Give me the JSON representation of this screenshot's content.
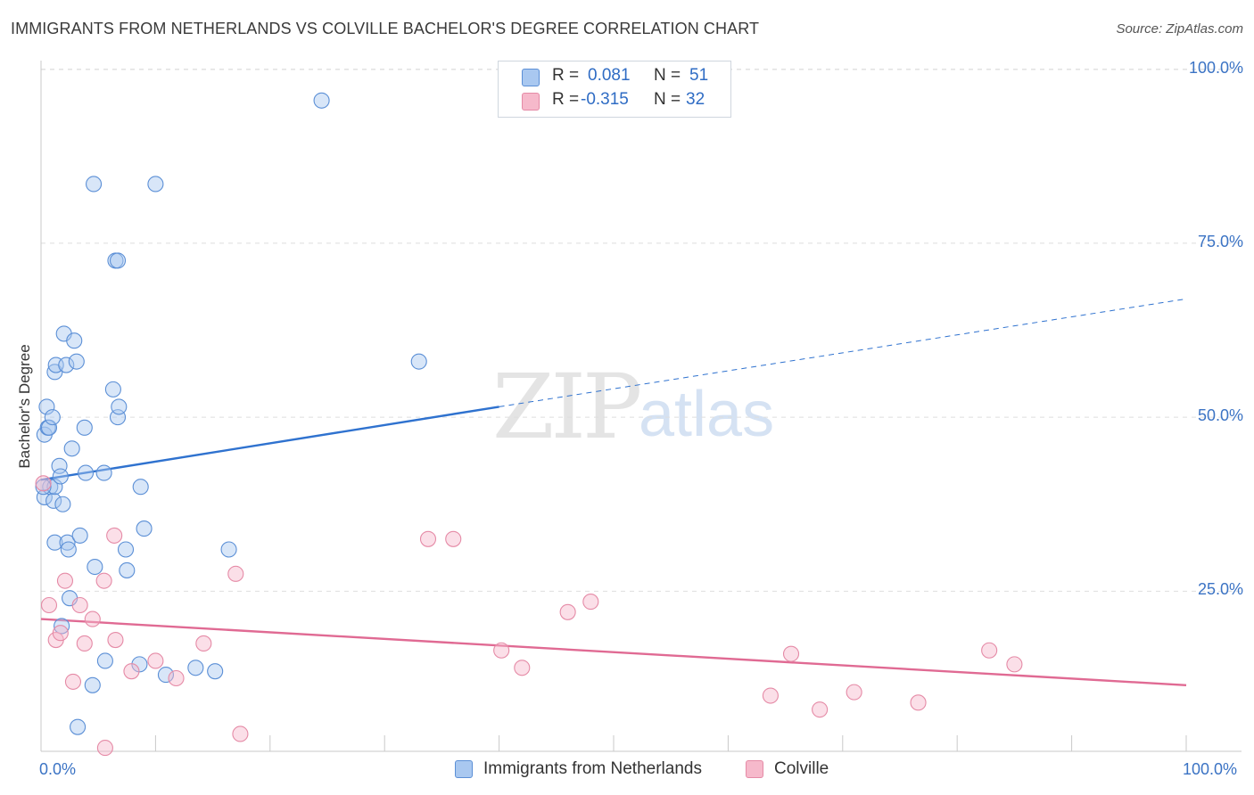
{
  "header": {
    "title": "IMMIGRANTS FROM NETHERLANDS VS COLVILLE BACHELOR'S DEGREE CORRELATION CHART",
    "source": "Source: ZipAtlas.com"
  },
  "watermark": {
    "zip": "ZIP",
    "atlas": "atlas"
  },
  "stats": {
    "rows": [
      {
        "r_label": "R =",
        "r_value": "0.081",
        "n_label": "N =",
        "n_value": "51"
      },
      {
        "r_label": "R =",
        "r_value": "-0.315",
        "n_label": "N =",
        "n_value": "32"
      }
    ]
  },
  "colors": {
    "blue_fill": "#a9c8f0",
    "blue_stroke": "#5b8fd6",
    "blue_line": "#2f72cf",
    "pink_fill": "#f6b9cb",
    "pink_stroke": "#e58aa6",
    "pink_line": "#e06a93",
    "tick_text": "#3b73c4",
    "grid": "#dedede"
  },
  "chart_data": {
    "type": "scatter",
    "title": "IMMIGRANTS FROM NETHERLANDS VS COLVILLE BACHELOR'S DEGREE CORRELATION CHART",
    "xlabel": "",
    "ylabel": "Bachelor's Degree",
    "xlim": [
      0,
      100
    ],
    "ylim": [
      2,
      102
    ],
    "x_tick_labels": [
      "0.0%",
      "100.0%"
    ],
    "y_ticks": [
      25,
      50,
      75,
      100
    ],
    "y_tick_labels": [
      "25.0%",
      "50.0%",
      "75.0%",
      "100.0%"
    ],
    "grid": true,
    "legend_placement": "bottom-center",
    "series": [
      {
        "name": "Immigrants from Netherlands",
        "color": "#a9c8f0",
        "points": [
          [
            0.3,
            47.5
          ],
          [
            0.3,
            38.5
          ],
          [
            0.5,
            51.5
          ],
          [
            0.6,
            48.5
          ],
          [
            0.7,
            48.5
          ],
          [
            0.8,
            40
          ],
          [
            1.0,
            50
          ],
          [
            1.1,
            38
          ],
          [
            1.2,
            40
          ],
          [
            1.2,
            32
          ],
          [
            1.2,
            56.5
          ],
          [
            1.3,
            57.5
          ],
          [
            1.6,
            43
          ],
          [
            1.7,
            41.5
          ],
          [
            1.8,
            20
          ],
          [
            1.9,
            37.5
          ],
          [
            2.0,
            62
          ],
          [
            2.2,
            57.5
          ],
          [
            2.3,
            32
          ],
          [
            2.4,
            31
          ],
          [
            2.5,
            24
          ],
          [
            2.7,
            45.5
          ],
          [
            2.9,
            61
          ],
          [
            3.1,
            58
          ],
          [
            3.2,
            5.5
          ],
          [
            3.4,
            33
          ],
          [
            3.8,
            48.5
          ],
          [
            3.9,
            42
          ],
          [
            4.5,
            11.5
          ],
          [
            4.6,
            83.5
          ],
          [
            4.7,
            28.5
          ],
          [
            5.5,
            42
          ],
          [
            5.6,
            15
          ],
          [
            6.3,
            54
          ],
          [
            6.5,
            72.5
          ],
          [
            6.7,
            72.5
          ],
          [
            6.7,
            50
          ],
          [
            6.8,
            51.5
          ],
          [
            7.4,
            31
          ],
          [
            7.5,
            28
          ],
          [
            8.6,
            14.5
          ],
          [
            8.7,
            40
          ],
          [
            9.0,
            34
          ],
          [
            10.0,
            83.5
          ],
          [
            10.9,
            13
          ],
          [
            13.5,
            14
          ],
          [
            15.2,
            13.5
          ],
          [
            16.4,
            31
          ],
          [
            24.5,
            95.5
          ],
          [
            33.0,
            58
          ],
          [
            0.2,
            40
          ]
        ]
      },
      {
        "name": "Colville",
        "color": "#f6b9cb",
        "points": [
          [
            0.2,
            40.5
          ],
          [
            0.7,
            23
          ],
          [
            1.3,
            18
          ],
          [
            1.7,
            19
          ],
          [
            2.1,
            26.5
          ],
          [
            2.8,
            12
          ],
          [
            3.4,
            23
          ],
          [
            3.8,
            17.5
          ],
          [
            4.5,
            21
          ],
          [
            5.5,
            26.5
          ],
          [
            5.6,
            2.5
          ],
          [
            6.4,
            33
          ],
          [
            6.5,
            18
          ],
          [
            7.9,
            13.5
          ],
          [
            10.0,
            15
          ],
          [
            11.8,
            12.5
          ],
          [
            14.2,
            17.5
          ],
          [
            17.0,
            27.5
          ],
          [
            17.4,
            4.5
          ],
          [
            33.8,
            32.5
          ],
          [
            36.0,
            32.5
          ],
          [
            40.2,
            16.5
          ],
          [
            42.0,
            14
          ],
          [
            46.0,
            22
          ],
          [
            48.0,
            23.5
          ],
          [
            63.7,
            10
          ],
          [
            65.5,
            16
          ],
          [
            68.0,
            8
          ],
          [
            71.0,
            10.5
          ],
          [
            76.6,
            9
          ],
          [
            82.8,
            16.5
          ],
          [
            85.0,
            14.5
          ]
        ]
      }
    ],
    "trend_lines": [
      {
        "series": "Immigrants from Netherlands",
        "x1": 0,
        "y1": 41.0,
        "x2": 40,
        "y2": 51.5,
        "dashed_from": 40,
        "x_end": 100,
        "y_end": 67.0
      },
      {
        "series": "Colville",
        "x1": 0,
        "y1": 21.0,
        "x2": 100,
        "y2": 11.5
      }
    ]
  }
}
